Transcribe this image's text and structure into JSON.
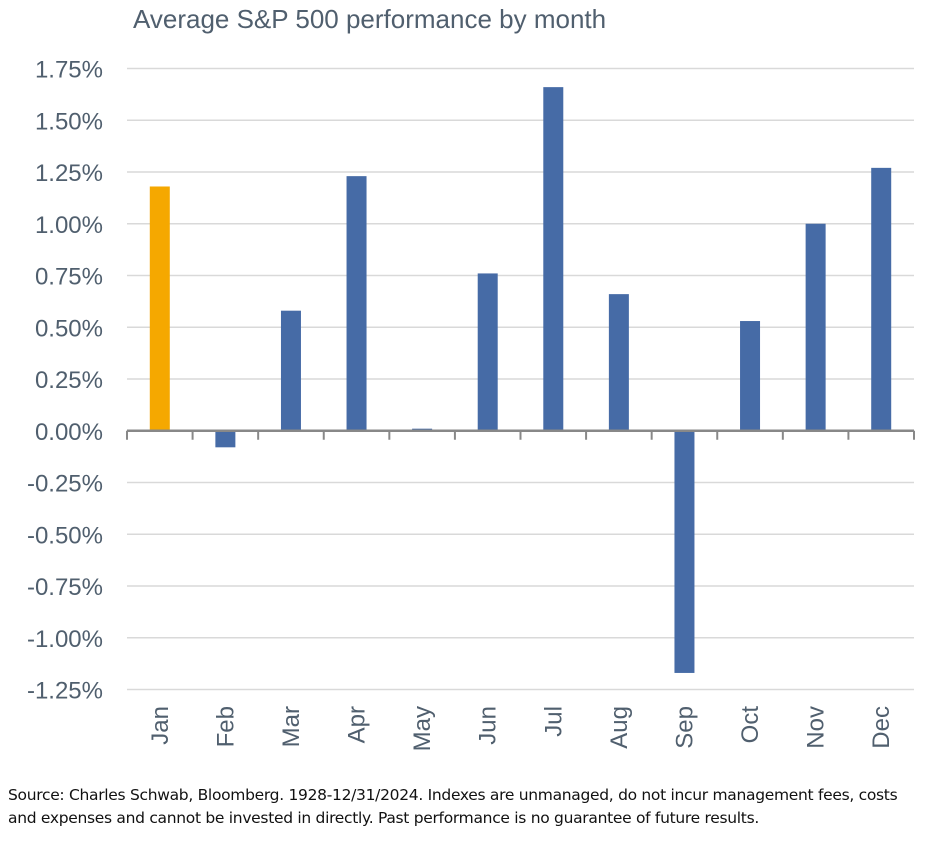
{
  "chart_data": {
    "type": "bar",
    "title": "Average S&P 500 performance by month",
    "xlabel": "",
    "ylabel": "",
    "categories": [
      "Jan",
      "Feb",
      "Mar",
      "Apr",
      "May",
      "Jun",
      "Jul",
      "Aug",
      "Sep",
      "Oct",
      "Nov",
      "Dec"
    ],
    "values": [
      1.18,
      -0.08,
      0.58,
      1.23,
      0.01,
      0.76,
      1.66,
      0.66,
      -1.17,
      0.53,
      1.0,
      1.27
    ],
    "unit": "%",
    "ylim": [
      -1.25,
      1.75
    ],
    "yticks": [
      1.75,
      1.5,
      1.25,
      1.0,
      0.75,
      0.5,
      0.25,
      0.0,
      -0.25,
      -0.5,
      -0.75,
      -1.0,
      -1.25
    ],
    "ytick_labels": [
      "1.75%",
      "1.50%",
      "1.25%",
      "1.00%",
      "0.75%",
      "0.50%",
      "0.25%",
      "0.00%",
      "-0.25%",
      "-0.50%",
      "-0.75%",
      "-1.00%",
      "-1.25%"
    ],
    "grid": true,
    "legend": "none",
    "highlight_index": 0,
    "colors": {
      "bar": "#466ba6",
      "highlight": "#f5a800",
      "grid": "#d9d9d9",
      "axis": "#888888",
      "text": "#505f6e"
    }
  },
  "footer": {
    "source_line1": "Source: Charles Schwab, Bloomberg. 1928-12/31/2024. Indexes are unmanaged, do not incur management fees, costs",
    "source_line2": "and expenses and cannot be invested in directly. Past performance is no guarantee of future results."
  }
}
